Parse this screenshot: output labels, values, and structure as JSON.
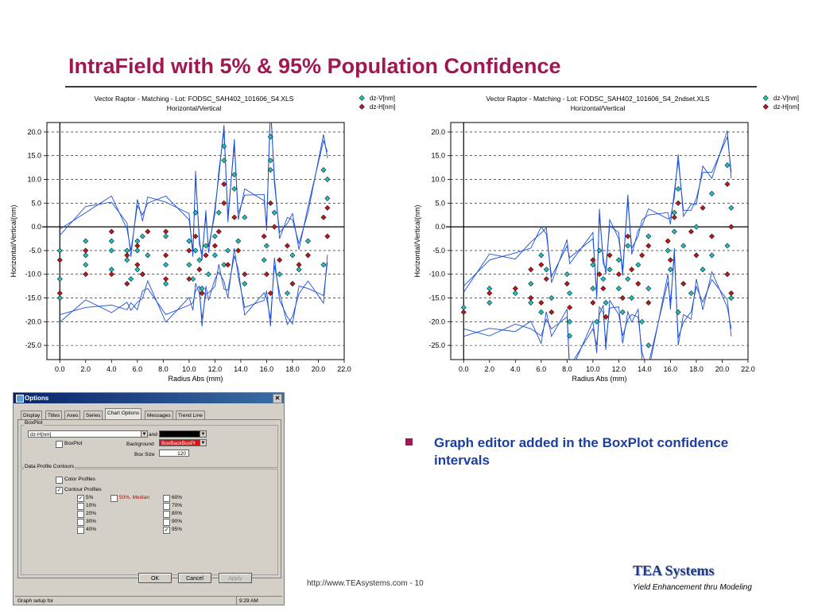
{
  "slide": {
    "title": "IntraField with 5% & 95% Population Confidence",
    "bullet": "Graph editor added in the BoxPlot confidence intervals",
    "footer_url": "http://www.TEAsystems.com - 10",
    "logo_name": "TEA Systems",
    "logo_tagline": "Yield Enhancement thru Modeling"
  },
  "colors": {
    "title": "#a01852",
    "bullet": "#1a3fa0",
    "series_v": "#21c0c0",
    "series_h": "#c01818",
    "envelope": "#1a4fd8"
  },
  "chart_data": [
    {
      "type": "scatter",
      "title": "Vector Raptor - Matching - Lot: FODSC_SAH402_101606_S4.XLS",
      "subtitle": "Horizontal/Vertical",
      "xlabel": "Radius Abs (mm)",
      "ylabel": "Horizontal/Vertical(nm)",
      "xlim": [
        -1.0,
        22.0
      ],
      "ylim": [
        -28.0,
        22.0
      ],
      "xticks": [
        "0.0",
        "2.0",
        "4.0",
        "6.0",
        "8.0",
        "10.0",
        "12.0",
        "14.0",
        "16.0",
        "18.0",
        "20.0",
        "22.0"
      ],
      "yticks": [
        "20.0",
        "15.0",
        "10.0",
        "5.0",
        "0.0",
        "-5.0",
        "-10.0",
        "-15.0",
        "-20.0",
        "-25.0"
      ],
      "grid": "dashed horizontal",
      "legend_position": "top-right",
      "series": [
        {
          "name": "dz-V[nm]",
          "color": "#21c0c0",
          "points": [
            [
              0.0,
              -5
            ],
            [
              0.0,
              -11
            ],
            [
              0.0,
              -15
            ],
            [
              2.0,
              -3
            ],
            [
              2.0,
              -6
            ],
            [
              2.0,
              -8
            ],
            [
              4.0,
              -3
            ],
            [
              4.0,
              -5
            ],
            [
              4.0,
              -9
            ],
            [
              5.2,
              -5
            ],
            [
              5.2,
              -7
            ],
            [
              5.5,
              -11
            ],
            [
              6.0,
              -3
            ],
            [
              6.0,
              -5
            ],
            [
              6.0,
              -9
            ],
            [
              6.4,
              -2
            ],
            [
              6.4,
              -10
            ],
            [
              6.8,
              -6
            ],
            [
              8.2,
              -2
            ],
            [
              8.2,
              -8
            ],
            [
              8.2,
              -12
            ],
            [
              10.0,
              -3
            ],
            [
              10.0,
              -8
            ],
            [
              10.3,
              -11
            ],
            [
              10.5,
              -5
            ],
            [
              10.5,
              3
            ],
            [
              10.8,
              -7
            ],
            [
              11.0,
              -13
            ],
            [
              11.3,
              -4
            ],
            [
              11.5,
              -10
            ],
            [
              12.0,
              -6
            ],
            [
              12.0,
              -2
            ],
            [
              12.3,
              3
            ],
            [
              12.7,
              -8
            ],
            [
              12.7,
              14
            ],
            [
              12.7,
              17
            ],
            [
              13.0,
              -5
            ],
            [
              13.5,
              8
            ],
            [
              13.5,
              11
            ],
            [
              13.8,
              -3
            ],
            [
              14.3,
              2
            ],
            [
              14.3,
              -12
            ],
            [
              15.8,
              -7
            ],
            [
              16.0,
              -4
            ],
            [
              16.3,
              12
            ],
            [
              16.3,
              14
            ],
            [
              16.3,
              19
            ],
            [
              16.6,
              3
            ],
            [
              17.0,
              -10
            ],
            [
              17.6,
              -14
            ],
            [
              18.0,
              -6
            ],
            [
              18.5,
              -9
            ],
            [
              19.2,
              -3
            ],
            [
              20.4,
              -8
            ],
            [
              20.4,
              12
            ],
            [
              20.7,
              10
            ],
            [
              20.7,
              6
            ]
          ]
        },
        {
          "name": "dz-H[nm]",
          "color": "#c01818",
          "points": [
            [
              0.0,
              -7
            ],
            [
              0.0,
              -14
            ],
            [
              2.0,
              -5
            ],
            [
              2.0,
              -10
            ],
            [
              4.0,
              -1
            ],
            [
              4.0,
              -10
            ],
            [
              5.2,
              -6
            ],
            [
              5.2,
              -12
            ],
            [
              6.0,
              -4
            ],
            [
              6.0,
              -8
            ],
            [
              6.4,
              -10
            ],
            [
              6.8,
              -1
            ],
            [
              8.2,
              -1
            ],
            [
              8.2,
              -6
            ],
            [
              8.2,
              -11
            ],
            [
              10.0,
              -5
            ],
            [
              10.0,
              -11
            ],
            [
              10.5,
              -2
            ],
            [
              10.8,
              -9
            ],
            [
              11.0,
              -14
            ],
            [
              11.3,
              -6
            ],
            [
              12.0,
              -4
            ],
            [
              12.3,
              -1
            ],
            [
              12.7,
              5
            ],
            [
              12.7,
              9
            ],
            [
              13.0,
              -8
            ],
            [
              13.5,
              2
            ],
            [
              13.8,
              -5
            ],
            [
              14.3,
              -10
            ],
            [
              15.8,
              -2
            ],
            [
              16.0,
              -10
            ],
            [
              16.3,
              5
            ],
            [
              16.3,
              -14
            ],
            [
              16.6,
              0
            ],
            [
              17.0,
              -7
            ],
            [
              17.6,
              -4
            ],
            [
              18.0,
              -12
            ],
            [
              18.5,
              -8
            ],
            [
              19.2,
              -6
            ],
            [
              20.4,
              2
            ],
            [
              20.7,
              -2
            ],
            [
              20.7,
              4
            ]
          ]
        }
      ]
    },
    {
      "type": "scatter",
      "title": "Vector Raptor - Matching - Lot: FODSC_SAH402_101606_S4_2ndset.XLS",
      "subtitle": "Horizontal/Vertical",
      "xlabel": "Radius Abs (mm)",
      "ylabel": "Horizontal/Vertical(nm)",
      "xlim": [
        -1.0,
        22.0
      ],
      "ylim": [
        -28.0,
        22.0
      ],
      "xticks": [
        "0.0",
        "2.0",
        "4.0",
        "6.0",
        "8.0",
        "10.0",
        "12.0",
        "14.0",
        "16.0",
        "18.0",
        "20.0",
        "22.0"
      ],
      "yticks": [
        "20.0",
        "15.0",
        "10.0",
        "5.0",
        "0.0",
        "-5.0",
        "-10.0",
        "-15.0",
        "-20.0",
        "-25.0"
      ],
      "grid": "dashed horizontal",
      "legend_position": "top-right",
      "series": [
        {
          "name": "dz-V[nm]",
          "color": "#21c0c0",
          "points": [
            [
              0.0,
              -17
            ],
            [
              2.0,
              -13
            ],
            [
              2.0,
              -16
            ],
            [
              4.0,
              -14
            ],
            [
              5.2,
              -12
            ],
            [
              5.2,
              -16
            ],
            [
              6.0,
              -6
            ],
            [
              6.0,
              -18
            ],
            [
              6.4,
              -9
            ],
            [
              6.8,
              -15
            ],
            [
              8.0,
              -10
            ],
            [
              8.2,
              -14
            ],
            [
              8.2,
              -20
            ],
            [
              8.2,
              -23
            ],
            [
              10.0,
              -8
            ],
            [
              10.0,
              -13
            ],
            [
              10.3,
              -20
            ],
            [
              10.5,
              -5
            ],
            [
              10.8,
              -11
            ],
            [
              11.0,
              -16
            ],
            [
              11.3,
              -9
            ],
            [
              12.0,
              -7
            ],
            [
              12.0,
              -13
            ],
            [
              12.3,
              -18
            ],
            [
              12.7,
              -4
            ],
            [
              12.7,
              -11
            ],
            [
              13.0,
              -15
            ],
            [
              13.5,
              -8
            ],
            [
              13.8,
              -20
            ],
            [
              14.3,
              -2
            ],
            [
              14.3,
              -13
            ],
            [
              14.3,
              -25
            ],
            [
              15.8,
              -5
            ],
            [
              16.0,
              -9
            ],
            [
              16.3,
              -1
            ],
            [
              16.3,
              3
            ],
            [
              16.6,
              8
            ],
            [
              16.6,
              -18
            ],
            [
              17.0,
              -4
            ],
            [
              17.6,
              -14
            ],
            [
              18.0,
              0
            ],
            [
              18.5,
              -9
            ],
            [
              19.2,
              -6
            ],
            [
              19.2,
              7
            ],
            [
              20.4,
              -4
            ],
            [
              20.4,
              13
            ],
            [
              20.7,
              -15
            ],
            [
              20.7,
              4
            ]
          ]
        },
        {
          "name": "dz-H[nm]",
          "color": "#c01818",
          "points": [
            [
              0.0,
              -18
            ],
            [
              2.0,
              -14
            ],
            [
              4.0,
              -13
            ],
            [
              5.2,
              -9
            ],
            [
              5.2,
              -15
            ],
            [
              6.0,
              -8
            ],
            [
              6.0,
              -16
            ],
            [
              6.4,
              -11
            ],
            [
              6.8,
              -18
            ],
            [
              8.0,
              -12
            ],
            [
              8.2,
              -17
            ],
            [
              10.0,
              -7
            ],
            [
              10.0,
              -16
            ],
            [
              10.5,
              -10
            ],
            [
              10.8,
              -13
            ],
            [
              11.0,
              -19
            ],
            [
              11.3,
              -6
            ],
            [
              12.0,
              -10
            ],
            [
              12.3,
              -15
            ],
            [
              12.7,
              -2
            ],
            [
              13.0,
              -9
            ],
            [
              13.5,
              -12
            ],
            [
              13.8,
              -6
            ],
            [
              14.3,
              -4
            ],
            [
              14.3,
              -16
            ],
            [
              15.8,
              -3
            ],
            [
              16.0,
              -7
            ],
            [
              16.3,
              2
            ],
            [
              16.6,
              5
            ],
            [
              17.0,
              -12
            ],
            [
              17.6,
              -1
            ],
            [
              18.0,
              -6
            ],
            [
              18.5,
              4
            ],
            [
              19.2,
              -2
            ],
            [
              20.4,
              -10
            ],
            [
              20.4,
              9
            ],
            [
              20.7,
              0
            ],
            [
              20.7,
              -14
            ]
          ]
        }
      ]
    }
  ],
  "dialog": {
    "title": "Options",
    "close_glyph": "✕",
    "tabs": [
      "Display",
      "Titles",
      "Axes",
      "Series",
      "Chart Options",
      "Messages",
      "Trend Line"
    ],
    "boxplot_group": "BoxPlot",
    "series_select": "dz-H[nm]",
    "and_label": "and",
    "boxplot_checkbox": "BoxPlot",
    "background_label": "Background",
    "background_value": "BoxBackBoxPl",
    "boxsize_label": "Box Size",
    "boxsize_value": "120",
    "contours_group": "Data Profile Contours",
    "color_profiles": "Color Profiles",
    "contour_profiles": "Contour Profiles",
    "checkmark": "✓",
    "percents_col1": [
      {
        "label": "5%",
        "checked": true
      },
      {
        "label": "10%",
        "checked": false
      },
      {
        "label": "20%",
        "checked": false
      },
      {
        "label": "30%",
        "checked": false
      },
      {
        "label": "40%",
        "checked": false
      }
    ],
    "median_label": "50%, Median",
    "percents_col3": [
      {
        "label": "60%",
        "checked": false
      },
      {
        "label": "70%",
        "checked": false
      },
      {
        "label": "80%",
        "checked": false
      },
      {
        "label": "90%",
        "checked": false
      },
      {
        "label": "95%",
        "checked": true
      }
    ],
    "ok": "OK",
    "cancel": "Cancel",
    "apply": "Apply",
    "status_left": "Graph setup for",
    "status_time": "9:29 AM"
  }
}
